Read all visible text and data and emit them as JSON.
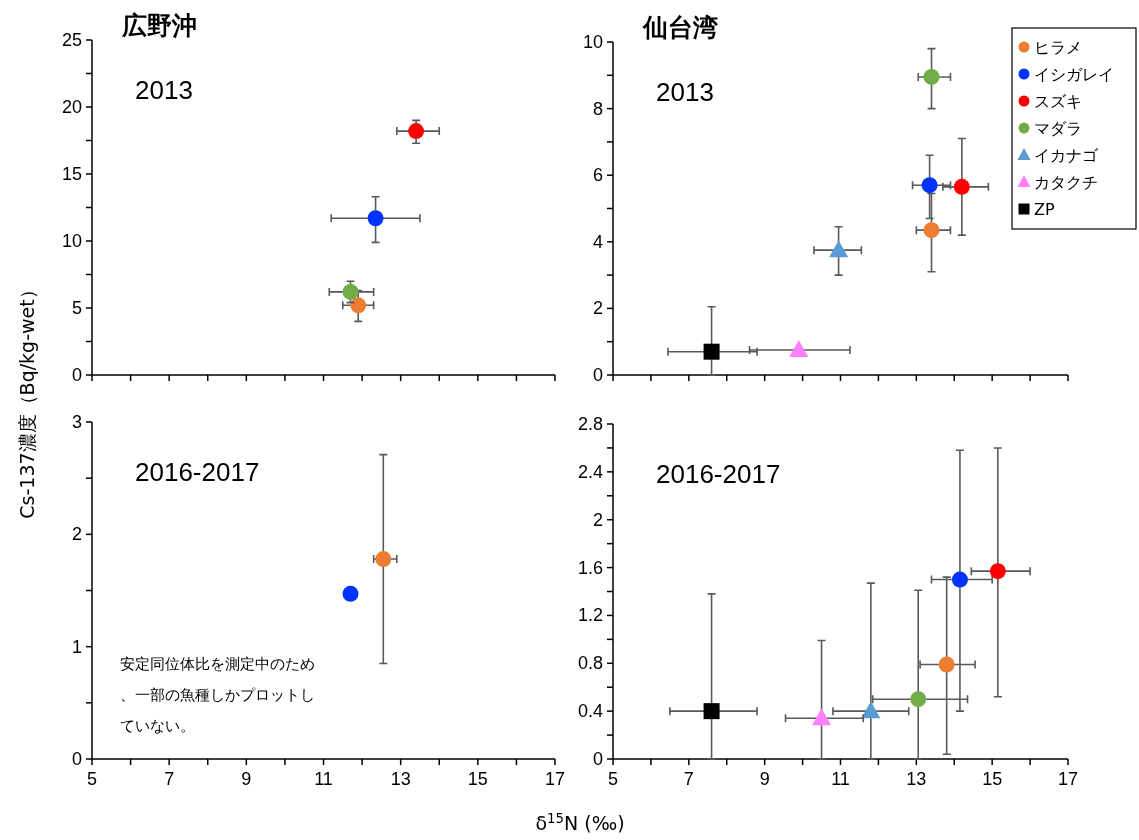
{
  "chart_data": [
    {
      "type": "scatter",
      "title": "広野沖",
      "subtitle": "2013",
      "ylabel": "Cs-137濃度（Bq/kg-wet）",
      "tick_labels": "y",
      "xlim": [
        5,
        17
      ],
      "xticks": [
        5,
        {
          "value": 6,
          "label": null
        },
        7,
        {
          "value": 8,
          "label": null
        },
        9,
        {
          "value": 10,
          "label": null
        },
        11,
        {
          "value": 12,
          "label": null
        },
        13,
        {
          "value": 14,
          "label": null
        },
        15,
        {
          "value": 16,
          "label": null
        },
        17
      ],
      "ylim": [
        0,
        25
      ],
      "yticks": [
        0,
        {
          "value": 2.5,
          "label": null
        },
        5,
        {
          "value": 7.5,
          "label": null
        },
        10,
        {
          "value": 12.5,
          "label": null
        },
        15,
        {
          "value": 17.5,
          "label": null
        },
        20,
        {
          "value": 22.5,
          "label": null
        },
        25
      ],
      "series": [
        {
          "color": "#ed7d31",
          "marker": "circle",
          "x": [
            11.9
          ],
          "values": [
            5.2
          ],
          "errors": [
            [
              4.0,
              6.3
            ]
          ],
          "xerrors": [
            [
              11.5,
              12.3
            ]
          ]
        },
        {
          "color": "#0033ff",
          "marker": "circle",
          "x": [
            12.35
          ],
          "values": [
            11.7
          ],
          "errors": [
            [
              9.9,
              13.3
            ]
          ],
          "xerrors": [
            [
              11.2,
              13.5
            ]
          ]
        },
        {
          "color": "#ff0000",
          "marker": "circle",
          "x": [
            13.4
          ],
          "values": [
            18.2
          ],
          "errors": [
            [
              17.3,
              19.0
            ]
          ],
          "xerrors": [
            [
              12.9,
              14.0
            ]
          ]
        },
        {
          "color": "#70ad47",
          "marker": "circle",
          "x": [
            11.7
          ],
          "values": [
            6.2
          ],
          "errors": [
            [
              5.4,
              7.0
            ]
          ],
          "xerrors": [
            [
              11.15,
              12.3
            ]
          ]
        }
      ]
    },
    {
      "type": "scatter",
      "title": "仙台湾",
      "subtitle": "2013",
      "legend": "top right",
      "tick_labels": "y",
      "xlim": [
        5,
        17
      ],
      "xticks": [
        5,
        {
          "value": 6,
          "label": null
        },
        7,
        {
          "value": 8,
          "label": null
        },
        9,
        {
          "value": 10,
          "label": null
        },
        11,
        {
          "value": 12,
          "label": null
        },
        13,
        {
          "value": 14,
          "label": null
        },
        15,
        {
          "value": 16,
          "label": null
        },
        17
      ],
      "ylim": [
        0,
        10
      ],
      "yticks": [
        0,
        {
          "value": 1,
          "label": null
        },
        2,
        {
          "value": 3,
          "label": null
        },
        4,
        {
          "value": 5,
          "label": null
        },
        6,
        {
          "value": 7,
          "label": null
        },
        8,
        {
          "value": 9,
          "label": null
        },
        10
      ],
      "series": [
        {
          "name": "ヒラメ",
          "color": "#ed7d31",
          "marker": "circle",
          "x": [
            13.4
          ],
          "values": [
            4.35
          ],
          "errors": [
            [
              3.1,
              5.45
            ]
          ],
          "xerrors": [
            [
              13.0,
              13.9
            ]
          ]
        },
        {
          "name": "イシガレイ",
          "color": "#0033ff",
          "marker": "circle",
          "x": [
            13.35
          ],
          "values": [
            5.7
          ],
          "errors": [
            [
              4.7,
              6.6
            ]
          ],
          "xerrors": [
            [
              12.9,
              13.9
            ]
          ]
        },
        {
          "name": "スズキ",
          "color": "#ff0000",
          "marker": "circle",
          "x": [
            14.2
          ],
          "values": [
            5.65
          ],
          "errors": [
            [
              4.2,
              7.1
            ]
          ],
          "xerrors": [
            [
              13.7,
              14.9
            ]
          ]
        },
        {
          "name": "マダラ",
          "color": "#70ad47",
          "marker": "circle",
          "x": [
            13.4
          ],
          "values": [
            8.95
          ],
          "errors": [
            [
              8.0,
              9.8
            ]
          ],
          "xerrors": [
            [
              13.05,
              13.9
            ]
          ]
        },
        {
          "name": "イカナゴ",
          "color": "#5b9bd5",
          "marker": "triangle",
          "x": [
            10.95
          ],
          "values": [
            3.75
          ],
          "errors": [
            [
              3.0,
              4.45
            ]
          ],
          "xerrors": [
            [
              10.3,
              11.55
            ]
          ]
        },
        {
          "name": "カタクチ",
          "color": "#ff80ff",
          "marker": "triangle",
          "x": [
            9.9
          ],
          "values": [
            0.75
          ],
          "xerrors": [
            [
              8.6,
              11.25
            ]
          ]
        },
        {
          "name": "ZP",
          "color": "#000000",
          "marker": "square",
          "x": [
            7.6
          ],
          "values": [
            0.7
          ],
          "errors": [
            [
              0,
              2.05
            ]
          ],
          "xerrors": [
            [
              6.45,
              8.8
            ]
          ]
        }
      ]
    },
    {
      "type": "scatter",
      "subtitle": "2016-2017",
      "xlabel": "δ$^{15}$N (‰)",
      "annotations": [
        "安定同位体比を測定中のため、一部の魚種しかプロットしていない。"
      ],
      "xlim": [
        5,
        17
      ],
      "xticks": [
        5,
        {
          "value": 6,
          "label": null
        },
        7,
        {
          "value": 8,
          "label": null
        },
        9,
        {
          "value": 10,
          "label": null
        },
        11,
        {
          "value": 12,
          "label": null
        },
        13,
        {
          "value": 14,
          "label": null
        },
        15,
        {
          "value": 16,
          "label": null
        },
        17
      ],
      "ylim": [
        0,
        3
      ],
      "yticks": [
        0,
        {
          "value": 0.5,
          "label": null
        },
        1,
        {
          "value": 1.5,
          "label": null
        },
        2,
        {
          "value": 2.5,
          "label": null
        },
        3
      ],
      "series": [
        {
          "color": "#ed7d31",
          "marker": "circle",
          "x": [
            12.55
          ],
          "values": [
            1.78
          ],
          "errors": [
            [
              0.85,
              2.71
            ]
          ],
          "xerrors": [
            [
              12.3,
              12.9
            ]
          ]
        },
        {
          "color": "#0033ff",
          "marker": "circle",
          "x": [
            11.7
          ],
          "values": [
            1.47
          ]
        }
      ]
    },
    {
      "type": "scatter",
      "subtitle": "2016-2017",
      "xlim": [
        5,
        17
      ],
      "xticks": [
        5,
        {
          "value": 6,
          "label": null
        },
        7,
        {
          "value": 8,
          "label": null
        },
        9,
        {
          "value": 10,
          "label": null
        },
        11,
        {
          "value": 12,
          "label": null
        },
        13,
        {
          "value": 14,
          "label": null
        },
        15,
        {
          "value": 16,
          "label": null
        },
        17
      ],
      "ylim": [
        0,
        2.8
      ],
      "yticks": [
        0,
        {
          "value": 0.2,
          "label": null
        },
        0.4,
        {
          "value": 0.6,
          "label": null
        },
        0.8,
        {
          "value": 1.0,
          "label": null
        },
        1.2,
        {
          "value": 1.4,
          "label": null
        },
        1.6,
        {
          "value": 1.8,
          "label": null
        },
        2,
        {
          "value": 2.2,
          "label": null
        },
        2.4,
        {
          "value": 2.6,
          "label": null
        },
        2.8
      ],
      "series": [
        {
          "color": "#ed7d31",
          "marker": "circle",
          "x": [
            13.8
          ],
          "values": [
            0.79
          ],
          "errors": [
            [
              0.04,
              1.52
            ]
          ],
          "xerrors": [
            [
              13.1,
              14.55
            ]
          ]
        },
        {
          "color": "#0033ff",
          "marker": "circle",
          "x": [
            14.15
          ],
          "values": [
            1.5
          ],
          "errors": [
            [
              0.4,
              2.58
            ]
          ],
          "xerrors": [
            [
              13.4,
              15.0
            ]
          ]
        },
        {
          "color": "#ff0000",
          "marker": "circle",
          "x": [
            15.15
          ],
          "values": [
            1.57
          ],
          "errors": [
            [
              0.52,
              2.6
            ]
          ],
          "xerrors": [
            [
              14.45,
              16.0
            ]
          ]
        },
        {
          "color": "#70ad47",
          "marker": "circle",
          "x": [
            13.05
          ],
          "values": [
            0.5
          ],
          "errors": [
            [
              0,
              1.41
            ]
          ],
          "xerrors": [
            [
              11.85,
              14.35
            ]
          ]
        },
        {
          "color": "#5b9bd5",
          "marker": "triangle",
          "x": [
            11.8
          ],
          "values": [
            0.4
          ],
          "errors": [
            [
              0,
              1.47
            ]
          ],
          "xerrors": [
            [
              10.8,
              12.8
            ]
          ]
        },
        {
          "color": "#ff80ff",
          "marker": "triangle",
          "x": [
            10.5
          ],
          "values": [
            0.34
          ],
          "errors": [
            [
              0,
              0.99
            ]
          ],
          "xerrors": [
            [
              9.55,
              11.6
            ]
          ]
        },
        {
          "color": "#000000",
          "marker": "square",
          "x": [
            7.6
          ],
          "values": [
            0.4
          ],
          "errors": [
            [
              0,
              1.38
            ]
          ],
          "xerrors": [
            [
              6.5,
              8.8
            ]
          ]
        }
      ]
    }
  ]
}
